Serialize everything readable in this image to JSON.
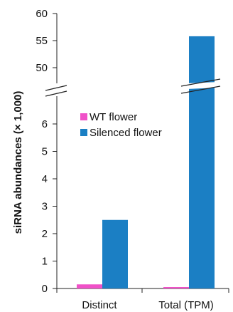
{
  "chart_data": {
    "type": "bar",
    "categories": [
      "Distinct",
      "Total (TPM)"
    ],
    "series": [
      {
        "name": "WT flower",
        "color": "#f051c8",
        "values": [
          0.15,
          0.05
        ]
      },
      {
        "name": "Silenced flower",
        "color": "#1b7fc4",
        "values": [
          2.5,
          55.8
        ]
      }
    ],
    "ylabel": "siRNA abundances (× 1,000)",
    "xlabel": "",
    "title": "",
    "y_segments": [
      {
        "range": [
          0,
          6
        ],
        "ticks": [
          "0",
          "1",
          "2",
          "3",
          "4",
          "5",
          "6"
        ]
      },
      {
        "range": [
          45,
          60
        ],
        "ticks": [
          "50",
          "55",
          "60"
        ]
      }
    ],
    "axis_break": true,
    "grid": false,
    "legend_position": "upper-left inside plot"
  }
}
